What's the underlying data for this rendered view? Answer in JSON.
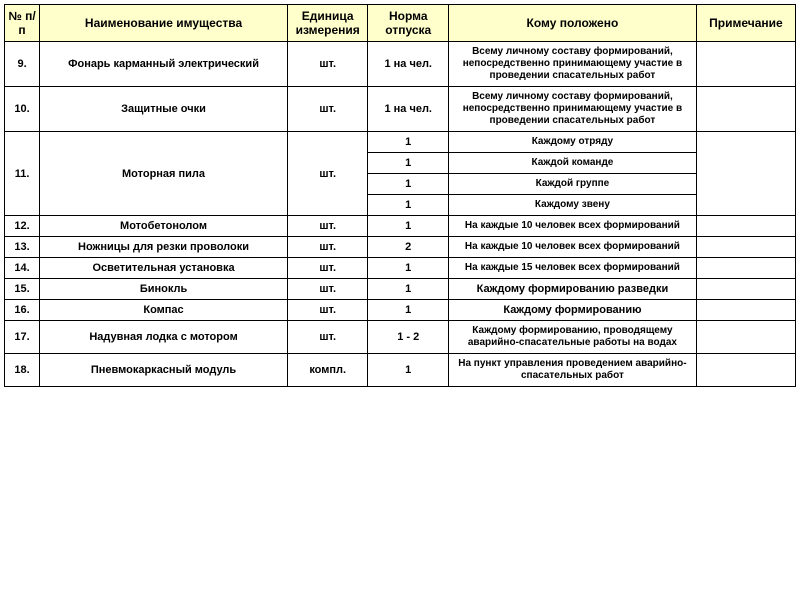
{
  "columns": [
    "№ п/п",
    "Наименование имущества",
    "Единица измерения",
    "Норма отпуска",
    "Кому положено",
    "Примечание"
  ],
  "rows": [
    {
      "num": "9.",
      "name": "Фонарь карманный электрический",
      "unit": "шт.",
      "norm": "1 на чел.",
      "who": "Всему личному составу формирований, непосредственно принимающему участие в проведении спасательных работ",
      "note": ""
    },
    {
      "num": "10.",
      "name": "Защитные очки",
      "unit": "шт.",
      "norm": "1 на чел.",
      "who": "Всему личному составу формирований, непосредственно принимающему участие в проведении спасательных работ",
      "note": ""
    },
    {
      "num": "11.",
      "name": "Моторная пила",
      "unit": "шт.",
      "sub": [
        {
          "norm": "1",
          "who": "Каждому отряду"
        },
        {
          "norm": "1",
          "who": "Каждой команде"
        },
        {
          "norm": "1",
          "who": "Каждой группе"
        },
        {
          "norm": "1",
          "who": "Каждому звену"
        }
      ],
      "note": ""
    },
    {
      "num": "12.",
      "name": "Мотобетонолом",
      "unit": "шт.",
      "norm": "1",
      "who": "На каждые 10 человек всех формирований",
      "note": ""
    },
    {
      "num": "13.",
      "name": "Ножницы для резки проволоки",
      "unit": "шт.",
      "norm": "2",
      "who": "На каждые 10 человек всех формирований",
      "note": ""
    },
    {
      "num": "14.",
      "name": "Осветительная установка",
      "unit": "шт.",
      "norm": "1",
      "who": "На каждые 15 человек всех формирований",
      "note": ""
    },
    {
      "num": "15.",
      "name": "Бинокль",
      "unit": "шт.",
      "norm": "1",
      "who": "Каждому формированию разведки",
      "note": ""
    },
    {
      "num": "16.",
      "name": "Компас",
      "unit": "шт.",
      "norm": "1",
      "who": "Каждому формированию",
      "note": ""
    },
    {
      "num": "17.",
      "name": "Надувная лодка с мотором",
      "unit": "шт.",
      "norm": "1 - 2",
      "who": "Каждому формированию, проводящему аварийно-спасательные работы на водах",
      "note": ""
    },
    {
      "num": "18.",
      "name": "Пневмокаркасный модуль",
      "unit": "компл.",
      "norm": "1",
      "who": "На пункт управления проведением аварийно-спасательных работ",
      "note": ""
    }
  ],
  "style": {
    "header_bg": "#ffffcc",
    "border_color": "#000000",
    "font_family": "Arial",
    "header_fontsize": 12,
    "cell_fontsize": 11,
    "small_fontsize": 10
  }
}
